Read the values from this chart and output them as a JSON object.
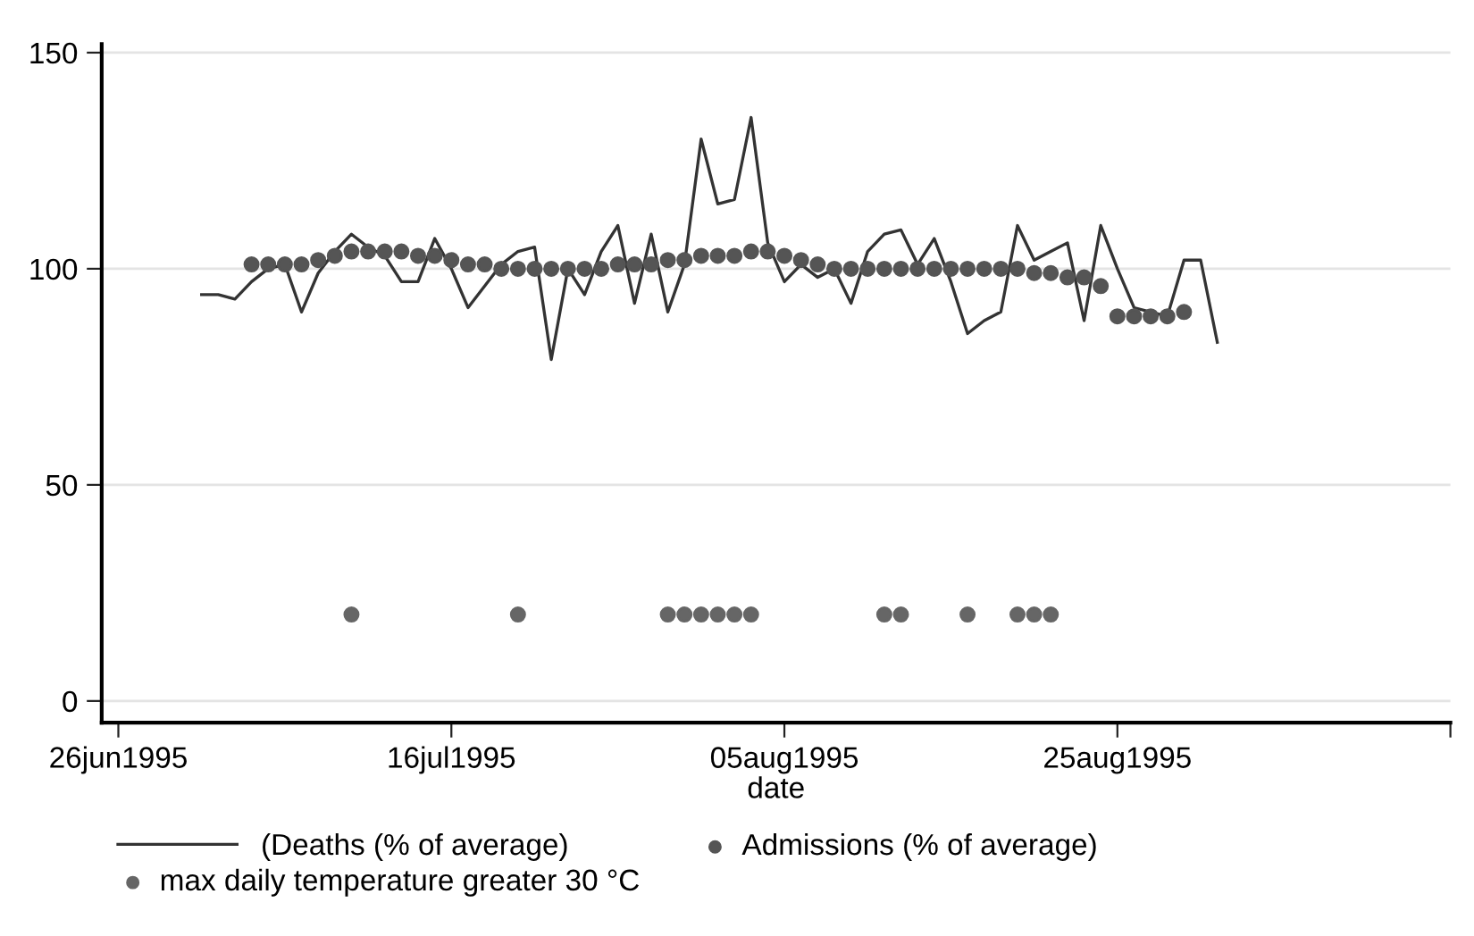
{
  "chart_data": {
    "type": "line",
    "xlabel": "date",
    "xlim": [
      "1995-06-25",
      "1995-09-14"
    ],
    "xticks": [
      {
        "value": "1995-06-26",
        "label": "26jun1995"
      },
      {
        "value": "1995-07-16",
        "label": "16jul1995"
      },
      {
        "value": "1995-08-05",
        "label": "05aug1995"
      },
      {
        "value": "1995-08-25",
        "label": "25aug1995"
      },
      {
        "value": "1995-09-14",
        "label": null
      }
    ],
    "ylim": [
      -5,
      152
    ],
    "yticks": [
      0,
      50,
      100,
      150
    ],
    "grid": "y",
    "legend": "bottom",
    "series": [
      {
        "name": "(Deaths (% of average)",
        "color": "#333333",
        "marker": "none",
        "x": [
          "1995-07-01",
          "1995-07-02",
          "1995-07-03",
          "1995-07-04",
          "1995-07-05",
          "1995-07-06",
          "1995-07-07",
          "1995-07-08",
          "1995-07-09",
          "1995-07-10",
          "1995-07-11",
          "1995-07-12",
          "1995-07-13",
          "1995-07-14",
          "1995-07-15",
          "1995-07-16",
          "1995-07-17",
          "1995-07-18",
          "1995-07-19",
          "1995-07-20",
          "1995-07-21",
          "1995-07-22",
          "1995-07-23",
          "1995-07-24",
          "1995-07-25",
          "1995-07-26",
          "1995-07-27",
          "1995-07-28",
          "1995-07-29",
          "1995-07-30",
          "1995-07-31",
          "1995-08-01",
          "1995-08-02",
          "1995-08-03",
          "1995-08-04",
          "1995-08-05",
          "1995-08-06",
          "1995-08-07",
          "1995-08-08",
          "1995-08-09",
          "1995-08-10",
          "1995-08-11",
          "1995-08-12",
          "1995-08-13",
          "1995-08-14",
          "1995-08-15",
          "1995-08-16",
          "1995-08-17",
          "1995-08-18",
          "1995-08-19",
          "1995-08-20",
          "1995-08-21",
          "1995-08-22",
          "1995-08-23",
          "1995-08-24",
          "1995-08-25",
          "1995-08-26",
          "1995-08-27",
          "1995-08-28",
          "1995-08-29",
          "1995-08-30",
          "1995-08-31"
        ],
        "values": [
          94,
          94,
          93,
          97,
          100,
          101,
          90,
          99,
          104,
          108,
          105,
          103,
          97,
          97,
          107,
          100,
          91,
          96,
          101,
          104,
          105,
          79,
          100,
          94,
          104,
          110,
          92,
          108,
          90,
          101,
          130,
          115,
          116,
          135,
          106,
          97,
          101,
          98,
          100,
          92,
          104,
          108,
          109,
          101,
          107,
          97,
          85,
          88,
          90,
          110,
          102,
          104,
          106,
          88,
          110,
          100,
          91,
          90,
          89,
          102,
          102,
          83
        ]
      },
      {
        "name": "Admissions (% of average)",
        "type": "scatter",
        "color": "#555555",
        "marker": "circle",
        "x": [
          "1995-07-04",
          "1995-07-05",
          "1995-07-06",
          "1995-07-07",
          "1995-07-08",
          "1995-07-09",
          "1995-07-10",
          "1995-07-11",
          "1995-07-12",
          "1995-07-13",
          "1995-07-14",
          "1995-07-15",
          "1995-07-16",
          "1995-07-17",
          "1995-07-18",
          "1995-07-19",
          "1995-07-20",
          "1995-07-21",
          "1995-07-22",
          "1995-07-23",
          "1995-07-24",
          "1995-07-25",
          "1995-07-26",
          "1995-07-27",
          "1995-07-28",
          "1995-07-29",
          "1995-07-30",
          "1995-07-31",
          "1995-08-01",
          "1995-08-02",
          "1995-08-03",
          "1995-08-04",
          "1995-08-05",
          "1995-08-06",
          "1995-08-07",
          "1995-08-08",
          "1995-08-09",
          "1995-08-10",
          "1995-08-11",
          "1995-08-12",
          "1995-08-13",
          "1995-08-14",
          "1995-08-15",
          "1995-08-16",
          "1995-08-17",
          "1995-08-18",
          "1995-08-19",
          "1995-08-20",
          "1995-08-21",
          "1995-08-22",
          "1995-08-23",
          "1995-08-24",
          "1995-08-25",
          "1995-08-26",
          "1995-08-27",
          "1995-08-28",
          "1995-08-29"
        ],
        "values": [
          101,
          101,
          101,
          101,
          102,
          103,
          104,
          104,
          104,
          104,
          103,
          103,
          102,
          101,
          101,
          100,
          100,
          100,
          100,
          100,
          100,
          100,
          101,
          101,
          101,
          102,
          102,
          103,
          103,
          103,
          104,
          104,
          103,
          102,
          101,
          100,
          100,
          100,
          100,
          100,
          100,
          100,
          100,
          100,
          100,
          100,
          100,
          99,
          99,
          98,
          98,
          96,
          89,
          89,
          89,
          89,
          90
        ]
      },
      {
        "name": "max daily temperature greater 30 °C",
        "type": "scatter",
        "color": "#666666",
        "marker": "circle",
        "x": [
          "1995-07-10",
          "1995-07-20",
          "1995-07-29",
          "1995-07-30",
          "1995-07-31",
          "1995-08-01",
          "1995-08-02",
          "1995-08-03",
          "1995-08-11",
          "1995-08-12",
          "1995-08-16",
          "1995-08-19",
          "1995-08-20",
          "1995-08-21"
        ],
        "values": [
          20,
          20,
          20,
          20,
          20,
          20,
          20,
          20,
          20,
          20,
          20,
          20,
          20,
          20
        ]
      }
    ]
  }
}
